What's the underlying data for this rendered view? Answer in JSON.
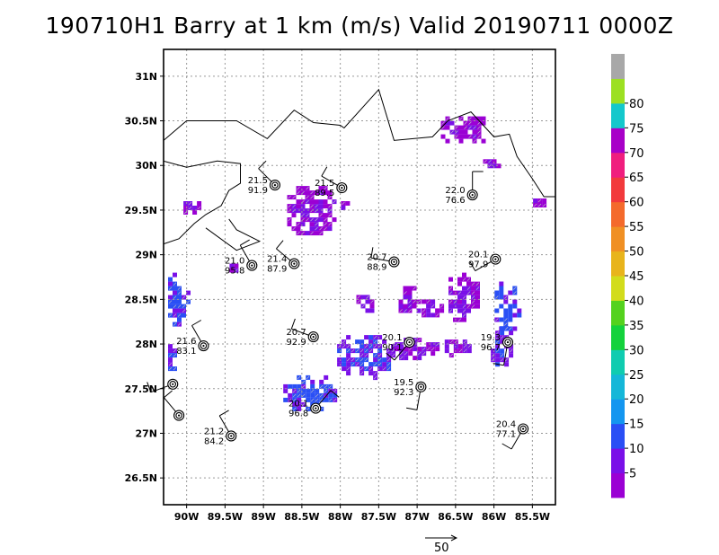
{
  "title": "190710H1 Barry at 1 km (m/s) Valid 20190711 0000Z",
  "map": {
    "lon_range": [
      -90.3,
      -85.2
    ],
    "lat_range": [
      26.2,
      31.3
    ],
    "lat_ticks": [
      {
        "value": 31.0,
        "label": "31N"
      },
      {
        "value": 30.5,
        "label": "30.5N"
      },
      {
        "value": 30.0,
        "label": "30N"
      },
      {
        "value": 29.5,
        "label": "29.5N"
      },
      {
        "value": 29.0,
        "label": "29N"
      },
      {
        "value": 28.5,
        "label": "28.5N"
      },
      {
        "value": 28.0,
        "label": "28N"
      },
      {
        "value": 27.5,
        "label": "27.5N"
      },
      {
        "value": 27.0,
        "label": "27N"
      },
      {
        "value": 26.5,
        "label": "26.5N"
      }
    ],
    "lon_ticks": [
      {
        "value": -90.0,
        "label": "90W"
      },
      {
        "value": -89.5,
        "label": "89.5W"
      },
      {
        "value": -89.0,
        "label": "89W"
      },
      {
        "value": -88.5,
        "label": "88.5W"
      },
      {
        "value": -88.0,
        "label": "88W"
      },
      {
        "value": -87.5,
        "label": "87.5W"
      },
      {
        "value": -87.0,
        "label": "87W"
      },
      {
        "value": -86.5,
        "label": "86.5W"
      },
      {
        "value": -86.0,
        "label": "86W"
      },
      {
        "value": -85.5,
        "label": "85.5W"
      }
    ],
    "grid": true,
    "coastline": [
      [
        [
          -90.3,
          30.28
        ],
        [
          -90.0,
          30.5
        ],
        [
          -89.35,
          30.5
        ],
        [
          -88.95,
          30.3
        ],
        [
          -88.6,
          30.62
        ],
        [
          -88.35,
          30.48
        ],
        [
          -88.0,
          30.45
        ],
        [
          -87.95,
          30.42
        ],
        [
          -87.5,
          30.85
        ],
        [
          -87.3,
          30.28
        ],
        [
          -86.8,
          30.32
        ],
        [
          -86.6,
          30.5
        ],
        [
          -86.3,
          30.6
        ],
        [
          -86.0,
          30.32
        ],
        [
          -85.8,
          30.35
        ],
        [
          -85.7,
          30.1
        ],
        [
          -85.5,
          29.85
        ],
        [
          -85.35,
          29.65
        ],
        [
          -85.2,
          29.65
        ]
      ],
      [
        [
          -90.3,
          30.05
        ],
        [
          -90.0,
          29.98
        ],
        [
          -89.6,
          30.05
        ],
        [
          -89.3,
          30.02
        ],
        [
          -89.3,
          29.8
        ],
        [
          -89.45,
          29.72
        ],
        [
          -89.55,
          29.55
        ],
        [
          -89.75,
          29.45
        ],
        [
          -89.9,
          29.35
        ],
        [
          -90.1,
          29.18
        ],
        [
          -90.3,
          29.12
        ]
      ],
      [
        [
          -89.75,
          29.3
        ],
        [
          -89.35,
          29.05
        ],
        [
          -89.2,
          29.1
        ],
        [
          -89.05,
          29.15
        ],
        [
          -89.35,
          29.28
        ],
        [
          -89.45,
          29.4
        ]
      ]
    ]
  },
  "colorbar": {
    "labels": [
      "5",
      "10",
      "15",
      "20",
      "25",
      "30",
      "35",
      "40",
      "45",
      "50",
      "55",
      "60",
      "65",
      "70",
      "75",
      "80"
    ],
    "colors": [
      "#9b00d4",
      "#7a10e8",
      "#2a4ff5",
      "#1496f0",
      "#15b7d8",
      "#10ccb0",
      "#14d23c",
      "#54d21e",
      "#d2dc1c",
      "#e8b41c",
      "#f09024",
      "#f46a2c",
      "#f23a3c",
      "#f01e7e",
      "#a800c8",
      "#14c8cc",
      "#9ce022",
      "#a8a8a8"
    ]
  },
  "stations": [
    {
      "lon": -88.85,
      "lat": 29.78,
      "speed": "21.5",
      "pres": "91.9",
      "wdir": 315
    },
    {
      "lon": -87.98,
      "lat": 29.75,
      "speed": "21.5",
      "pres": "89.5",
      "wdir": 300
    },
    {
      "lon": -86.28,
      "lat": 29.67,
      "speed": "22.0",
      "pres": "76.6",
      "wdir": 0
    },
    {
      "lon": -89.15,
      "lat": 28.88,
      "speed": "21.0",
      "pres": "95.8",
      "wdir": 330
    },
    {
      "lon": -88.6,
      "lat": 28.9,
      "speed": "21.4",
      "pres": "87.9",
      "wdir": 310
    },
    {
      "lon": -87.3,
      "lat": 28.92,
      "speed": "20.7",
      "pres": "88.9",
      "wdir": 280
    },
    {
      "lon": -85.98,
      "lat": 28.95,
      "speed": "20.1",
      "pres": "97.9",
      "wdir": 240
    },
    {
      "lon": -89.78,
      "lat": 27.98,
      "speed": "21.6",
      "pres": "83.1",
      "wdir": 330
    },
    {
      "lon": -88.35,
      "lat": 28.08,
      "speed": "20.7",
      "pres": "92.9",
      "wdir": 290
    },
    {
      "lon": -87.1,
      "lat": 28.02,
      "speed": "20.1",
      "pres": "90.1",
      "wdir": 220
    },
    {
      "lon": -85.82,
      "lat": 28.02,
      "speed": "19.3",
      "pres": "96.7",
      "wdir": 190
    },
    {
      "lon": -90.18,
      "lat": 27.55,
      "speed": "",
      "pres": "",
      "wdir": 250
    },
    {
      "lon": -90.1,
      "lat": 27.2,
      "speed": "",
      "pres": "",
      "wdir": 320
    },
    {
      "lon": -88.32,
      "lat": 27.28,
      "speed": "20.1",
      "pres": "96.8",
      "wdir": 40
    },
    {
      "lon": -86.95,
      "lat": 27.52,
      "speed": "19.5",
      "pres": "92.3",
      "wdir": 190
    },
    {
      "lon": -89.42,
      "lat": 26.97,
      "speed": "21.2",
      "pres": "84.2",
      "wdir": 330
    },
    {
      "lon": -85.62,
      "lat": 27.05,
      "speed": "20.4",
      "pres": "77.1",
      "wdir": 210
    }
  ],
  "echo_regions": [
    {
      "lon": [
        -88.75,
        -88.05
      ],
      "lat": [
        29.22,
        29.82
      ],
      "speed": 6
    },
    {
      "lon": [
        -88.05,
        -87.88
      ],
      "lat": [
        29.5,
        29.65
      ],
      "speed": 6
    },
    {
      "lon": [
        -90.1,
        -89.8
      ],
      "lat": [
        29.48,
        29.65
      ],
      "speed": 6
    },
    {
      "lon": [
        -85.55,
        -85.3
      ],
      "lat": [
        29.55,
        29.68
      ],
      "speed": 6
    },
    {
      "lon": [
        -86.75,
        -86.05
      ],
      "lat": [
        30.25,
        30.6
      ],
      "speed": 5
    },
    {
      "lon": [
        -86.2,
        -85.95
      ],
      "lat": [
        29.98,
        30.12
      ],
      "speed": 6
    },
    {
      "lon": [
        -87.3,
        -86.95
      ],
      "lat": [
        28.3,
        28.7
      ],
      "speed": 6
    },
    {
      "lon": [
        -87.0,
        -86.7
      ],
      "lat": [
        28.3,
        28.55
      ],
      "speed": 5
    },
    {
      "lon": [
        -86.65,
        -86.2
      ],
      "lat": [
        28.25,
        28.85
      ],
      "speed": 6
    },
    {
      "lon": [
        -87.85,
        -87.55
      ],
      "lat": [
        28.35,
        28.6
      ],
      "speed": 6
    },
    {
      "lon": [
        -86.05,
        -85.65
      ],
      "lat": [
        28.15,
        28.75
      ],
      "speed": 12
    },
    {
      "lon": [
        -90.3,
        -90.0
      ],
      "lat": [
        28.2,
        28.85
      ],
      "speed": 12
    },
    {
      "lon": [
        -89.5,
        -89.35
      ],
      "lat": [
        28.82,
        28.95
      ],
      "speed": 6
    },
    {
      "lon": [
        -88.1,
        -87.3
      ],
      "lat": [
        27.62,
        28.15
      ],
      "speed": 11
    },
    {
      "lon": [
        -88.8,
        -88.05
      ],
      "lat": [
        27.25,
        27.7
      ],
      "speed": 12
    },
    {
      "lon": [
        -87.35,
        -86.7
      ],
      "lat": [
        27.82,
        28.12
      ],
      "speed": 6
    },
    {
      "lon": [
        -86.7,
        -86.3
      ],
      "lat": [
        27.88,
        28.1
      ],
      "speed": 6
    },
    {
      "lon": [
        -86.1,
        -85.75
      ],
      "lat": [
        27.75,
        28.25
      ],
      "speed": 11
    },
    {
      "lon": [
        -90.3,
        -90.15
      ],
      "lat": [
        27.7,
        28.05
      ],
      "speed": 12
    }
  ],
  "vector_scale": {
    "label": "50"
  }
}
